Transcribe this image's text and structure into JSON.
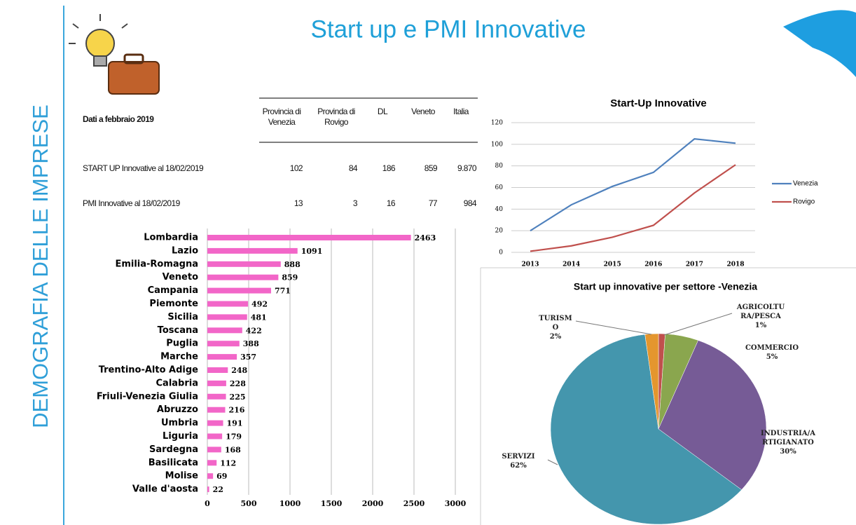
{
  "side_title": "DEMOGRAFIA DELLE IMPRESE",
  "title": "Start up e PMI Innovative",
  "table": {
    "header": [
      "Dati a febbraio 2019",
      "Provincia di Venezia",
      "Provinda di Rovigo",
      "DL",
      "Veneto",
      "Italia"
    ],
    "rows": [
      [
        "START UP Innovative al 18/02/2019",
        "102",
        "84",
        "186",
        "859",
        "9.870"
      ],
      [
        "PMI Innovative al 18/02/2019",
        "13",
        "3",
        "16",
        "77",
        "984"
      ]
    ]
  },
  "chart_data": [
    {
      "type": "hbar",
      "categories": [
        "Lombardia",
        "Lazio",
        "Emilia-Romagna",
        "Veneto",
        "Campania",
        "Piemonte",
        "Sicilia",
        "Toscana",
        "Puglia",
        "Marche",
        "Trentino-Alto Adige",
        "Calabria",
        "Friuli-Venezia Giulia",
        "Abruzzo",
        "Umbria",
        "Liguria",
        "Sardegna",
        "Basilicata",
        "Molise",
        "Valle d'aosta"
      ],
      "values": [
        2463,
        1091,
        888,
        859,
        771,
        492,
        481,
        422,
        388,
        357,
        248,
        228,
        225,
        216,
        191,
        179,
        168,
        112,
        69,
        22
      ],
      "color": "#f266c8",
      "xlim": [
        0,
        3000
      ],
      "xticks": [
        0,
        500,
        1000,
        1500,
        2000,
        2500,
        3000
      ],
      "grid": true
    },
    {
      "type": "line",
      "title": "Start-Up  Innovative",
      "categories": [
        "2013",
        "2014",
        "2015",
        "2016",
        "2017",
        "2018"
      ],
      "series": [
        {
          "name": "Venezia",
          "color": "#4f81bd",
          "values": [
            20,
            44,
            61,
            74,
            105,
            101
          ]
        },
        {
          "name": "Rovigo",
          "color": "#c0504d",
          "values": [
            1,
            6,
            14,
            25,
            55,
            81
          ]
        }
      ],
      "ylim": [
        0,
        120
      ],
      "yticks": [
        0,
        20,
        40,
        60,
        80,
        100,
        120
      ],
      "grid": true,
      "legend": "right"
    },
    {
      "type": "pie",
      "title": "Start up innovative per settore -Venezia",
      "categories": [
        "AGRICOLTURA/PESCA",
        "COMMERCIO",
        "INDUSTRIA/ARTIGIANATO",
        "SERVIZI",
        "TURISMO"
      ],
      "values": [
        1,
        5,
        30,
        62,
        2
      ],
      "value_labels": [
        "1%",
        "5%",
        "30%",
        "62%",
        "2%"
      ],
      "colors": [
        "#c0504d",
        "#8aa64e",
        "#765b96",
        "#4496ad",
        "#e4962e"
      ]
    }
  ]
}
